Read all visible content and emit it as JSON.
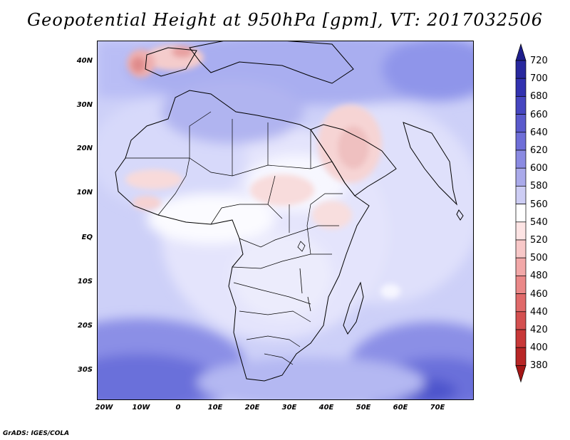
{
  "title": "Geopotential Height at 950hPa [gpm], VT: 2017032506",
  "credit": "GrADS: IGES/COLA",
  "axes": {
    "y_ticks": [
      "40N",
      "30N",
      "20N",
      "10N",
      "EQ",
      "10S",
      "20S",
      "30S"
    ],
    "x_ticks": [
      "20W",
      "10W",
      "0",
      "10E",
      "20E",
      "30E",
      "40E",
      "50E",
      "60E",
      "70E"
    ]
  },
  "colorbar": {
    "levels": [
      "720",
      "700",
      "680",
      "660",
      "640",
      "620",
      "600",
      "580",
      "560",
      "540",
      "520",
      "500",
      "480",
      "460",
      "440",
      "420",
      "400",
      "380"
    ],
    "colors": [
      "#1e1e8c",
      "#28289e",
      "#3232b0",
      "#4646c0",
      "#5a5acc",
      "#6e6ed8",
      "#8a8ae2",
      "#aaaaea",
      "#cdcdf4",
      "#ffffff",
      "#fde4e4",
      "#f8c8c8",
      "#f2a8a8",
      "#ea8888",
      "#e06a6a",
      "#d45050",
      "#c83838",
      "#b82626",
      "#a41616"
    ]
  },
  "colors": {
    "ocean_base": "#cdd0f8",
    "land_base": "#e9e9fb"
  }
}
